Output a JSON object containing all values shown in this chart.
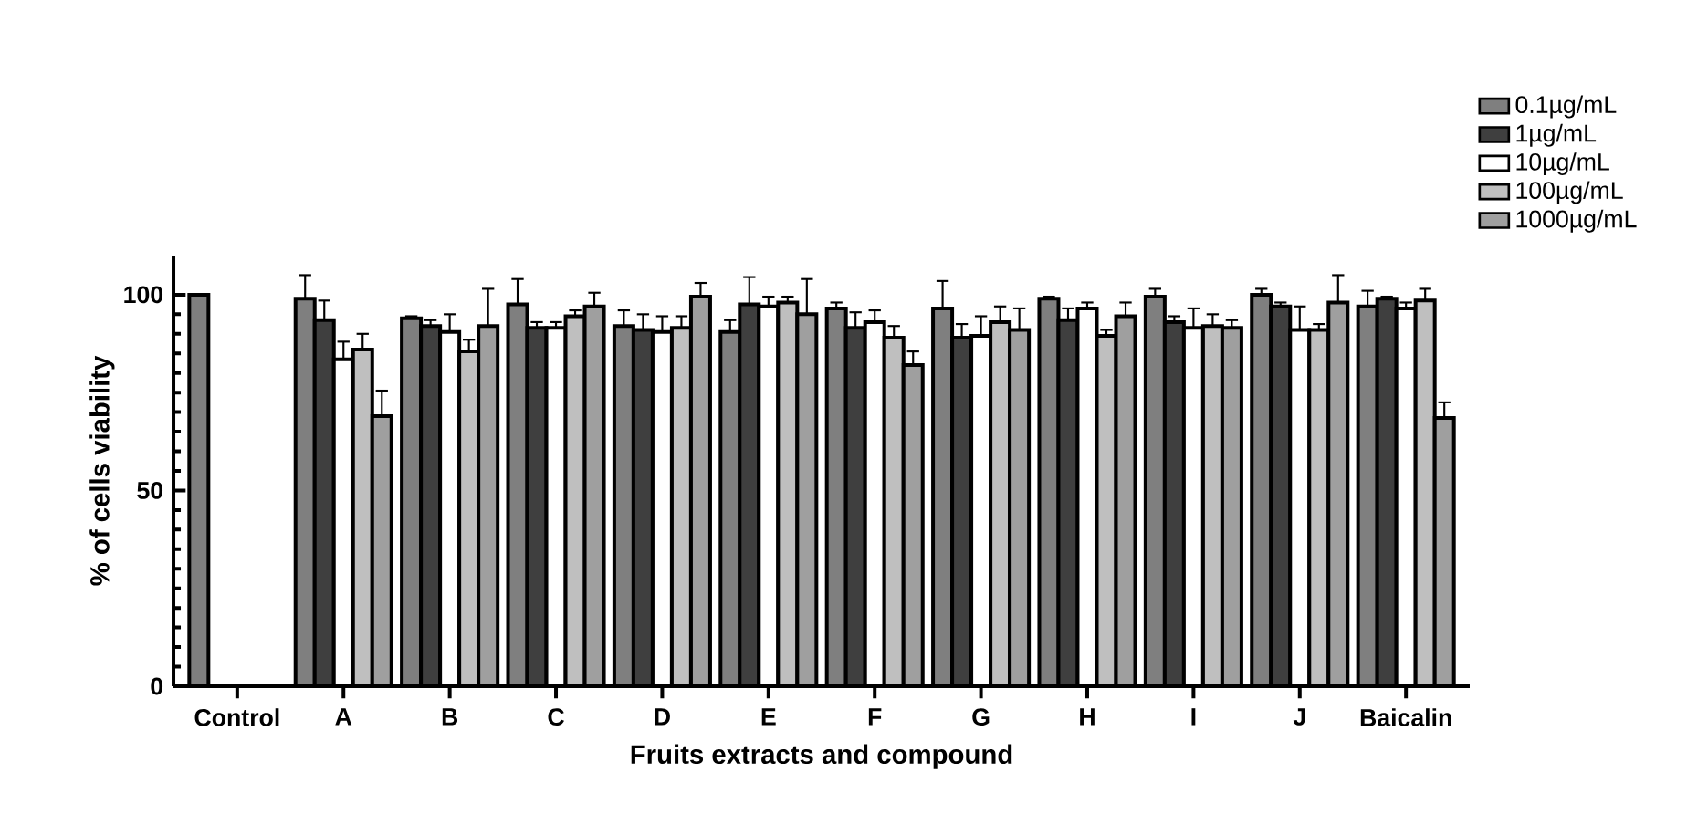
{
  "chart_data": {
    "type": "bar",
    "xlabel": "Fruits extracts and compound",
    "ylabel": "% of cells viability",
    "categories": [
      "Control",
      "A",
      "B",
      "C",
      "D",
      "E",
      "F",
      "G",
      "H",
      "I",
      "J",
      "Baicalin"
    ],
    "ylim": [
      0,
      110
    ],
    "yticks": [
      0,
      50,
      100
    ],
    "legend": "top right",
    "series": [
      {
        "name": "0.1µg/mL",
        "color": "#7f7f7f",
        "values": [
          100,
          99,
          94,
          97.5,
          92,
          90.5,
          96.5,
          96.5,
          99,
          99.5,
          100,
          97
        ],
        "errors": [
          null,
          6,
          0.5,
          6.5,
          4,
          3,
          1.5,
          7,
          0.5,
          2,
          1.5,
          4
        ]
      },
      {
        "name": "1µg/mL",
        "color": "#3f3f3f",
        "values": [
          null,
          93.5,
          92,
          91.5,
          91,
          97.5,
          91.5,
          89,
          93.5,
          93,
          97,
          99
        ],
        "errors": [
          null,
          5,
          1.5,
          1.5,
          4,
          7,
          4,
          3.5,
          3,
          1.5,
          1,
          0.5
        ]
      },
      {
        "name": "10µg/mL",
        "color": "#ffffff",
        "values": [
          null,
          83.5,
          90.5,
          91.5,
          90.5,
          97,
          93,
          89.5,
          96.5,
          91.5,
          91,
          96.5
        ],
        "errors": [
          null,
          4.5,
          4.5,
          1.5,
          4,
          2.5,
          3,
          5,
          1.5,
          5,
          6,
          1.5
        ]
      },
      {
        "name": "100µg/mL",
        "color": "#bfbfbf",
        "values": [
          null,
          86,
          85.5,
          94.5,
          91.5,
          98,
          89,
          93,
          89.5,
          92,
          91,
          98.5
        ],
        "errors": [
          null,
          4,
          3,
          1.5,
          3,
          1.5,
          3,
          4,
          1.5,
          3,
          1.5,
          3
        ]
      },
      {
        "name": "1000µg/mL",
        "color": "#9f9f9f",
        "values": [
          null,
          69,
          92,
          97,
          99.5,
          95,
          82,
          91,
          94.5,
          91.5,
          98,
          68.5
        ],
        "errors": [
          null,
          6.5,
          9.5,
          3.5,
          3.5,
          9,
          3.5,
          5.5,
          3.5,
          2,
          7,
          4
        ]
      }
    ]
  }
}
